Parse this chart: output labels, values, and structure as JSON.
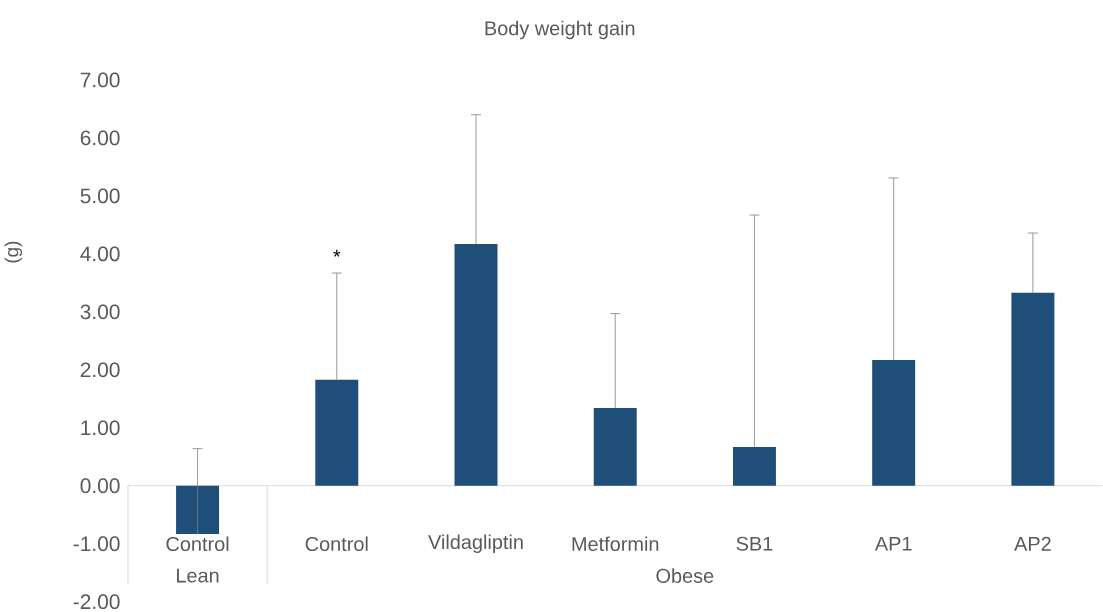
{
  "chart_data": {
    "type": "bar",
    "title": "Body weight gain",
    "ylabel": "(g)",
    "categories": [
      "Control",
      "Control",
      "Vildagliptin",
      "Metformin",
      "SB1",
      "AP1",
      "AP2"
    ],
    "values": [
      -0.83,
      1.83,
      4.17,
      1.34,
      0.67,
      2.17,
      3.33
    ],
    "errors": [
      [
        -0.83,
        0.64
      ],
      [
        1.83,
        3.67
      ],
      [
        4.17,
        6.4
      ],
      [
        1.34,
        2.97
      ],
      [
        0.67,
        4.67
      ],
      [
        2.17,
        5.31
      ],
      [
        3.33,
        4.36
      ]
    ],
    "color": "#1f4e79",
    "ylim": [
      -2,
      7
    ],
    "yticks": [
      {
        "value": -2,
        "label": "-2.00"
      },
      {
        "value": -1,
        "label": "-1.00"
      },
      {
        "value": 0,
        "label": "0.00"
      },
      {
        "value": 1,
        "label": "1.00"
      },
      {
        "value": 2,
        "label": "2.00"
      },
      {
        "value": 3,
        "label": "3.00"
      },
      {
        "value": 4,
        "label": "4.00"
      },
      {
        "value": 5,
        "label": "5.00"
      },
      {
        "value": 6,
        "label": "6.00"
      },
      {
        "value": 7,
        "label": "7.00"
      }
    ],
    "annotations": [
      "*",
      "Lean",
      "Obese"
    ]
  }
}
